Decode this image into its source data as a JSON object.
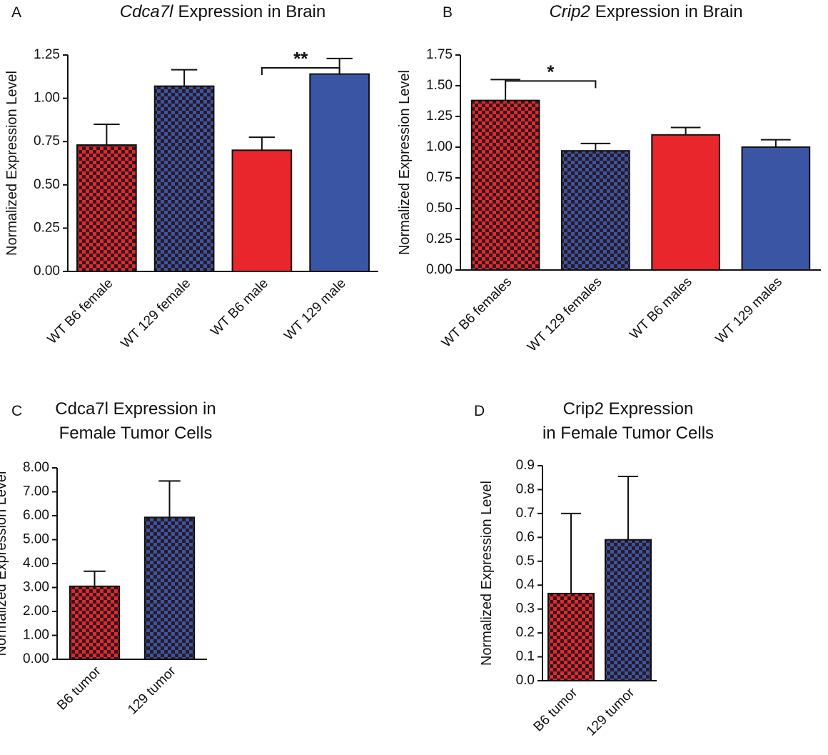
{
  "chart_data": [
    {
      "type": "bar",
      "panel_label": "A",
      "title_gene": "Cdca7l",
      "title": "Expression in Brain",
      "ylabel": "Normalized Expression Level",
      "categories": [
        "WT B6 female",
        "WT 129 female",
        "WT B6 male",
        "WT 129 male"
      ],
      "values": [
        0.73,
        1.07,
        0.7,
        1.14
      ],
      "errors": [
        0.12,
        0.095,
        0.075,
        0.09
      ],
      "colors": [
        "#e8262b",
        "#3b55a5",
        "#e8262b",
        "#3b55a5"
      ],
      "patterned": [
        true,
        true,
        false,
        false
      ],
      "ylim": [
        0,
        1.25
      ],
      "yticks": [
        {
          "value": 0,
          "label": "0.00"
        },
        {
          "value": 0.25,
          "label": "0.25"
        },
        {
          "value": 0.5,
          "label": "0.50"
        },
        {
          "value": 0.75,
          "label": "0.75"
        },
        {
          "value": 1,
          "label": "1.00"
        },
        {
          "value": 1.25,
          "label": "1.25"
        }
      ],
      "annotations": [
        {
          "text": "**",
          "from": "WT B6 male",
          "to": "WT 129 male"
        }
      ]
    },
    {
      "type": "bar",
      "panel_label": "B",
      "title_gene": "Crip2",
      "title": "Expression in Brain",
      "ylabel": "Normalized Expression Level",
      "categories": [
        "WT B6 females",
        "WT 129 females",
        "WT B6 males",
        "WT 129 males"
      ],
      "values": [
        1.38,
        0.97,
        1.1,
        1.0
      ],
      "errors": [
        0.17,
        0.06,
        0.06,
        0.06
      ],
      "colors": [
        "#e8262b",
        "#3b55a5",
        "#e8262b",
        "#3b55a5"
      ],
      "patterned": [
        true,
        true,
        false,
        false
      ],
      "ylim": [
        0,
        1.75
      ],
      "yticks": [
        {
          "value": 0,
          "label": "0.00"
        },
        {
          "value": 0.25,
          "label": "0.25"
        },
        {
          "value": 0.5,
          "label": "0.50"
        },
        {
          "value": 0.75,
          "label": "0.75"
        },
        {
          "value": 1,
          "label": "1.00"
        },
        {
          "value": 1.25,
          "label": "1.25"
        },
        {
          "value": 1.5,
          "label": "1.50"
        },
        {
          "value": 1.75,
          "label": "1.75"
        }
      ],
      "annotations": [
        {
          "text": "*",
          "from": "WT B6 females",
          "to": "WT 129 females"
        }
      ]
    },
    {
      "type": "bar",
      "panel_label": "C",
      "title": [
        "Cdca7l Expression in",
        "Female Tumor Cells"
      ],
      "ylabel": "Normalized Expression Level",
      "categories": [
        "B6 tumor",
        "129 tumor"
      ],
      "values": [
        3.05,
        5.93
      ],
      "errors": [
        0.63,
        1.52
      ],
      "colors": [
        "#e8262b",
        "#3b55a5"
      ],
      "patterned": [
        true,
        true
      ],
      "ylim": [
        0,
        8
      ],
      "yticks": [
        {
          "value": 0,
          "label": "0.00"
        },
        {
          "value": 1,
          "label": "1.00"
        },
        {
          "value": 2,
          "label": "2.00"
        },
        {
          "value": 3,
          "label": "3.00"
        },
        {
          "value": 4,
          "label": "4.00"
        },
        {
          "value": 5,
          "label": "5.00"
        },
        {
          "value": 6,
          "label": "6.00"
        },
        {
          "value": 7,
          "label": "7.00"
        },
        {
          "value": 8,
          "label": "8.00"
        }
      ]
    },
    {
      "type": "bar",
      "panel_label": "D",
      "title": [
        "Crip2 Expression",
        "in Female Tumor Cells"
      ],
      "ylabel": "Normalized Expression Level",
      "categories": [
        "B6 tumor",
        "129 tumor"
      ],
      "values": [
        0.365,
        0.59
      ],
      "errors": [
        0.335,
        0.265
      ],
      "colors": [
        "#e8262b",
        "#3b55a5"
      ],
      "patterned": [
        true,
        true
      ],
      "ylim": [
        0,
        0.9
      ],
      "yticks": [
        {
          "value": 0,
          "label": "0.0"
        },
        0.1,
        0.2,
        0.3,
        0.4,
        0.5,
        0.6,
        0.7,
        0.8,
        0.9
      ]
    }
  ]
}
